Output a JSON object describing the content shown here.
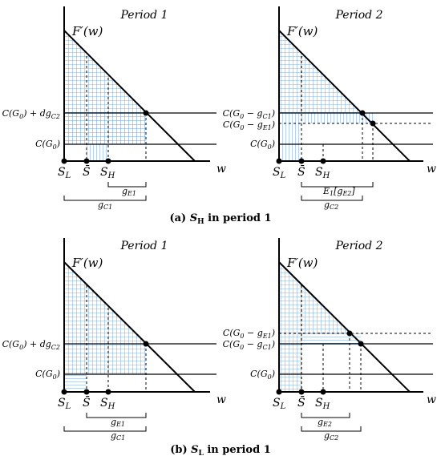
{
  "figure": {
    "panel_a": {
      "caption_prefix": "(a) ",
      "caption_var": "S",
      "caption_sub": "H",
      "caption_suffix": " in period 1",
      "left": {
        "title": "Period 1",
        "curve_label": "F′(w)",
        "y_upper": "C(G",
        "y_upper_sub1": "0",
        "y_upper_mid": ") + dg",
        "y_upper_sub2": "C2",
        "y_lower": "C(G",
        "y_lower_sub": "0",
        "y_lower_end": ")",
        "x_axis": "w",
        "x_points": [
          "S",
          "S̄",
          "S"
        ],
        "x_point_subs": [
          "L",
          "",
          "H"
        ],
        "brace_top": "g",
        "brace_top_sub": "E1",
        "brace_bottom": "g",
        "brace_bottom_sub": "C1"
      },
      "right": {
        "title": "Period 2",
        "curve_label": "F′(w)",
        "y_upper": "C(G",
        "y_upper_sub1": "0",
        "y_upper_mid": " − g",
        "y_upper_sub2": "C1",
        "y_mid": "C(G",
        "y_mid_sub1": "0",
        "y_mid_mid": " − g",
        "y_mid_sub2": "E1",
        "y_lower": "C(G",
        "y_lower_sub": "0",
        "y_lower_end": ")",
        "x_axis": "w",
        "x_points": [
          "S",
          "S̄",
          "S"
        ],
        "x_point_subs": [
          "L",
          "",
          "H"
        ],
        "brace_top": "E",
        "brace_top_sub": "1",
        "brace_top_arg": "[g",
        "brace_top_arg_sub": "E2",
        "brace_bottom": "g",
        "brace_bottom_sub": "C2"
      }
    },
    "panel_b": {
      "caption_prefix": "(b) ",
      "caption_var": "S",
      "caption_sub": "L",
      "caption_suffix": " in period 1",
      "left": {
        "title": "Period 1",
        "curve_label": "F′(w)",
        "y_upper": "C(G",
        "y_upper_sub1": "0",
        "y_upper_mid": ") + dg",
        "y_upper_sub2": "C2",
        "y_lower": "C(G",
        "y_lower_sub": "0",
        "y_lower_end": ")",
        "x_axis": "w",
        "x_points": [
          "S",
          "S̄",
          "S"
        ],
        "x_point_subs": [
          "L",
          "",
          "H"
        ],
        "brace_top": "g",
        "brace_top_sub": "E1",
        "brace_bottom": "g",
        "brace_bottom_sub": "C1"
      },
      "right": {
        "title": "Period 2",
        "curve_label": "F′(w)",
        "y_upper": "C(G",
        "y_upper_sub1": "0",
        "y_upper_mid": " − g",
        "y_upper_sub2": "E1",
        "y_mid": "C(G",
        "y_mid_sub1": "0",
        "y_mid_mid": " − g",
        "y_mid_sub2": "C1",
        "y_lower": "C(G",
        "y_lower_sub": "0",
        "y_lower_end": ")",
        "x_axis": "w",
        "x_points": [
          "S",
          "S̄",
          "S"
        ],
        "x_point_subs": [
          "L",
          "",
          "H"
        ],
        "brace_top": "g",
        "brace_top_sub": "E2",
        "brace_bottom": "g",
        "brace_bottom_sub": "C2"
      }
    }
  },
  "colors": {
    "hatch": "#5b9bd5",
    "line": "#000000"
  }
}
